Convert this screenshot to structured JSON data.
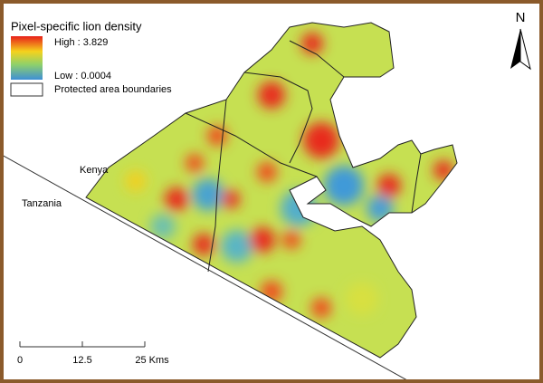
{
  "legend": {
    "title": "Pixel-specific lion density",
    "high_label": "High : 3.829",
    "low_label": "Low : 0.0004",
    "boundary_label": "Protected area boundaries"
  },
  "map_labels": {
    "kenya": "Kenya",
    "tanzania": "Tanzania"
  },
  "scale_bar": {
    "ticks": [
      "0",
      "12.5",
      "25 Kms"
    ]
  },
  "north_label": "N"
}
